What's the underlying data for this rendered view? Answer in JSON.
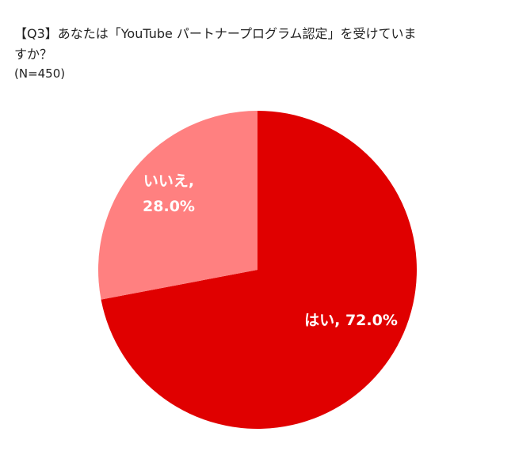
{
  "chart_data": {
    "type": "pie",
    "title": "【Q3】あなたは「YouTube パートナープログラム認定」を受けていますか？",
    "subtitle": "(N=450)",
    "slices": [
      {
        "name": "はい",
        "value": 72.0,
        "label_line1": "はい, 72.0%",
        "label_line2": "",
        "color": "#e00000"
      },
      {
        "name": "いいえ",
        "value": 28.0,
        "label_line1": "いいえ,",
        "label_line2": "28.0%",
        "color": "#ff8080"
      }
    ],
    "start": "12 o'clock",
    "direction": "clockwise",
    "legend": "none"
  }
}
